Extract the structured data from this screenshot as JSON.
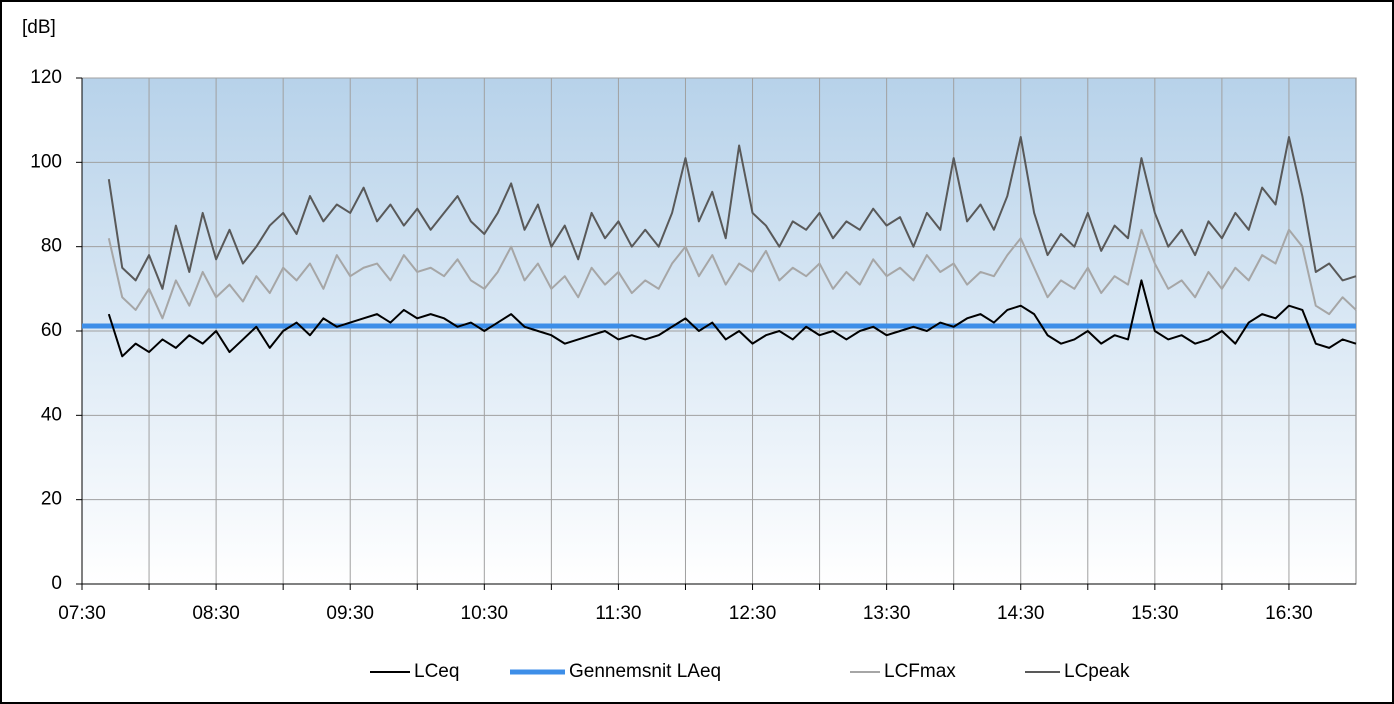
{
  "chart_data": {
    "type": "line",
    "y_title": "[dB]",
    "x": [
      "07:42",
      "07:48",
      "07:54",
      "08:00",
      "08:06",
      "08:12",
      "08:18",
      "08:24",
      "08:30",
      "08:36",
      "08:42",
      "08:48",
      "08:54",
      "09:00",
      "09:06",
      "09:12",
      "09:18",
      "09:24",
      "09:30",
      "09:36",
      "09:42",
      "09:48",
      "09:54",
      "10:00",
      "10:06",
      "10:12",
      "10:18",
      "10:24",
      "10:30",
      "10:36",
      "10:42",
      "10:48",
      "10:54",
      "11:00",
      "11:06",
      "11:12",
      "11:18",
      "11:24",
      "11:30",
      "11:36",
      "11:42",
      "11:48",
      "11:54",
      "12:00",
      "12:06",
      "12:12",
      "12:18",
      "12:24",
      "12:30",
      "12:36",
      "12:42",
      "12:48",
      "12:54",
      "13:00",
      "13:06",
      "13:12",
      "13:18",
      "13:24",
      "13:30",
      "13:36",
      "13:42",
      "13:48",
      "13:54",
      "14:00",
      "14:06",
      "14:12",
      "14:18",
      "14:24",
      "14:30",
      "14:36",
      "14:42",
      "14:48",
      "14:54",
      "15:00",
      "15:06",
      "15:12",
      "15:18",
      "15:24",
      "15:30",
      "15:36",
      "15:42",
      "15:48",
      "15:54",
      "16:00",
      "16:06",
      "16:12",
      "16:18",
      "16:24",
      "16:30",
      "16:36",
      "16:42",
      "16:48",
      "16:54",
      "17:00"
    ],
    "series": [
      {
        "name": "LCeq",
        "color": "#000000",
        "width": 2,
        "values": [
          64,
          54,
          57,
          55,
          58,
          56,
          59,
          57,
          60,
          55,
          58,
          61,
          56,
          60,
          62,
          59,
          63,
          61,
          62,
          63,
          64,
          62,
          65,
          63,
          64,
          63,
          61,
          62,
          60,
          62,
          64,
          61,
          60,
          59,
          57,
          58,
          59,
          60,
          58,
          59,
          58,
          59,
          61,
          63,
          60,
          62,
          58,
          60,
          57,
          59,
          60,
          58,
          61,
          59,
          60,
          58,
          60,
          61,
          59,
          60,
          61,
          60,
          62,
          61,
          63,
          64,
          62,
          65,
          66,
          64,
          59,
          57,
          58,
          60,
          57,
          59,
          58,
          72,
          60,
          58,
          59,
          57,
          58,
          60,
          57,
          62,
          64,
          63,
          66,
          65,
          57,
          56,
          58,
          57
        ]
      },
      {
        "name": "Gennemsnit LAeq",
        "color": "#3d8ee8",
        "width": 5,
        "x": [
          "07:30",
          "17:00"
        ],
        "values": [
          61.2,
          61.2
        ]
      },
      {
        "name": "LCFmax",
        "color": "#a6a6a6",
        "width": 2,
        "values": [
          82,
          68,
          65,
          70,
          63,
          72,
          66,
          74,
          68,
          71,
          67,
          73,
          69,
          75,
          72,
          76,
          70,
          78,
          73,
          75,
          76,
          72,
          78,
          74,
          75,
          73,
          77,
          72,
          70,
          74,
          80,
          72,
          76,
          70,
          73,
          68,
          75,
          71,
          74,
          69,
          72,
          70,
          76,
          80,
          73,
          78,
          71,
          76,
          74,
          79,
          72,
          75,
          73,
          76,
          70,
          74,
          71,
          77,
          73,
          75,
          72,
          78,
          74,
          76,
          71,
          74,
          73,
          78,
          82,
          75,
          68,
          72,
          70,
          75,
          69,
          73,
          71,
          84,
          76,
          70,
          72,
          68,
          74,
          70,
          75,
          72,
          78,
          76,
          84,
          80,
          66,
          64,
          68,
          65
        ]
      },
      {
        "name": "LCpeak",
        "color": "#595959",
        "width": 2,
        "values": [
          96,
          75,
          72,
          78,
          70,
          85,
          74,
          88,
          77,
          84,
          76,
          80,
          85,
          88,
          83,
          92,
          86,
          90,
          88,
          94,
          86,
          90,
          85,
          89,
          84,
          88,
          92,
          86,
          83,
          88,
          95,
          84,
          90,
          80,
          85,
          77,
          88,
          82,
          86,
          80,
          84,
          80,
          88,
          101,
          86,
          93,
          82,
          104,
          88,
          85,
          80,
          86,
          84,
          88,
          82,
          86,
          84,
          89,
          85,
          87,
          80,
          88,
          84,
          101,
          86,
          90,
          84,
          92,
          106,
          88,
          78,
          83,
          80,
          88,
          79,
          85,
          82,
          101,
          88,
          80,
          84,
          78,
          86,
          82,
          88,
          84,
          94,
          90,
          106,
          92,
          74,
          76,
          72,
          73
        ]
      }
    ],
    "xlim": [
      "07:30",
      "17:00"
    ],
    "xticks": [
      "07:30",
      "08:30",
      "09:30",
      "10:30",
      "11:30",
      "12:30",
      "13:30",
      "14:30",
      "15:30",
      "16:30"
    ],
    "x_minor_ticks": [
      "08:00",
      "09:00",
      "10:00",
      "11:00",
      "12:00",
      "13:00",
      "14:00",
      "15:00",
      "16:00"
    ],
    "ylim": [
      0,
      120
    ],
    "yticks": [
      0,
      20,
      40,
      60,
      80,
      100,
      120
    ],
    "grid": true,
    "legend": "bottom"
  }
}
